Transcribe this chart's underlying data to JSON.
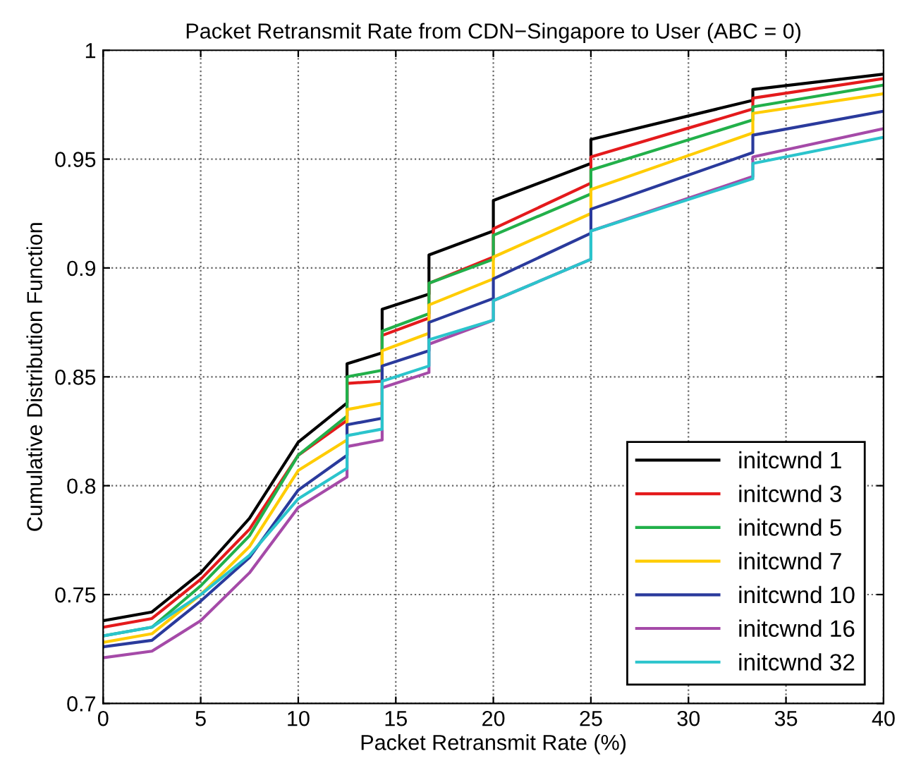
{
  "chart_data": {
    "type": "line",
    "title": "Packet Retransmit Rate from CDN−Singapore to User (ABC = 0)",
    "xlabel": "Packet Retransmit Rate (%)",
    "ylabel": "Cumulative Distribution Function",
    "x": [
      0,
      2.5,
      5,
      7.5,
      10,
      12.5,
      12.5,
      14.3,
      14.3,
      16.7,
      16.7,
      20,
      20,
      25,
      25,
      33.3,
      33.3,
      40
    ],
    "series": [
      {
        "name": "initcwnd 1",
        "color": "#000000",
        "values": [
          0.738,
          0.742,
          0.76,
          0.785,
          0.82,
          0.838,
          0.856,
          0.861,
          0.881,
          0.888,
          0.906,
          0.917,
          0.931,
          0.948,
          0.959,
          0.977,
          0.982,
          0.989
        ]
      },
      {
        "name": "initcwnd 3",
        "color": "#e41a1c",
        "values": [
          0.735,
          0.739,
          0.757,
          0.78,
          0.814,
          0.83,
          0.847,
          0.848,
          0.869,
          0.877,
          0.893,
          0.905,
          0.918,
          0.939,
          0.951,
          0.973,
          0.978,
          0.987
        ]
      },
      {
        "name": "initcwnd 5",
        "color": "#22b04a",
        "values": [
          0.731,
          0.735,
          0.754,
          0.777,
          0.814,
          0.832,
          0.85,
          0.853,
          0.871,
          0.879,
          0.893,
          0.904,
          0.915,
          0.934,
          0.945,
          0.968,
          0.974,
          0.984
        ]
      },
      {
        "name": "initcwnd 7",
        "color": "#ffcc00",
        "values": [
          0.728,
          0.732,
          0.75,
          0.772,
          0.807,
          0.821,
          0.835,
          0.838,
          0.862,
          0.87,
          0.883,
          0.895,
          0.905,
          0.925,
          0.936,
          0.962,
          0.971,
          0.98
        ]
      },
      {
        "name": "initcwnd 10",
        "color": "#2a3a9c",
        "values": [
          0.726,
          0.729,
          0.747,
          0.767,
          0.798,
          0.814,
          0.828,
          0.831,
          0.855,
          0.862,
          0.875,
          0.886,
          0.895,
          0.916,
          0.927,
          0.953,
          0.961,
          0.972
        ]
      },
      {
        "name": "initcwnd 16",
        "color": "#a54aa8",
        "values": [
          0.721,
          0.724,
          0.738,
          0.76,
          0.79,
          0.804,
          0.818,
          0.821,
          0.845,
          0.852,
          0.865,
          0.876,
          0.885,
          0.904,
          0.917,
          0.942,
          0.951,
          0.964
        ]
      },
      {
        "name": "initcwnd 32",
        "color": "#2bc4cc",
        "values": [
          0.731,
          0.735,
          0.75,
          0.768,
          0.794,
          0.808,
          0.823,
          0.826,
          0.848,
          0.855,
          0.867,
          0.876,
          0.885,
          0.904,
          0.917,
          0.941,
          0.948,
          0.96
        ]
      }
    ],
    "xlim": [
      0,
      40
    ],
    "xticks": [
      0,
      5,
      10,
      15,
      20,
      25,
      30,
      35,
      40
    ],
    "ylim": [
      0.7,
      1
    ],
    "yticks": [
      0.7,
      0.75,
      0.8,
      0.85,
      0.9,
      0.95,
      1
    ],
    "grid": true,
    "legend": "bottom right",
    "line_style": "solid"
  }
}
